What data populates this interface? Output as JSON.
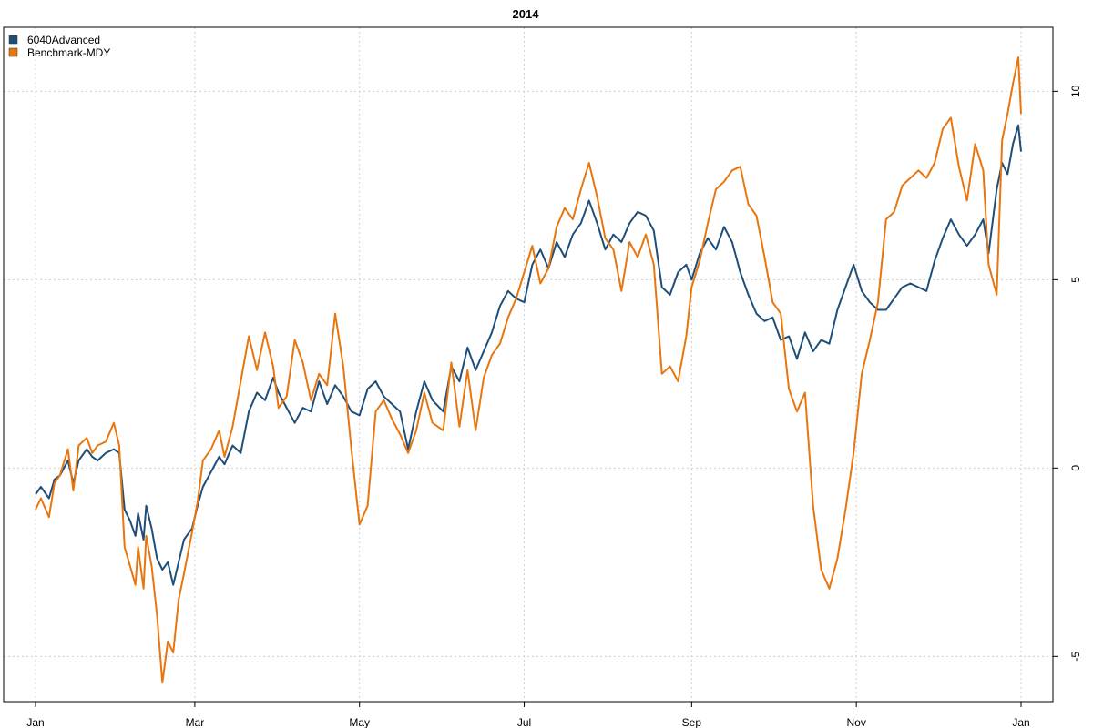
{
  "chart_data": {
    "type": "line",
    "title": "2014",
    "xlabel": "",
    "ylabel": "",
    "x_axis_type": "date",
    "xlim": [
      "2014-01-01",
      "2015-01-01"
    ],
    "ylim": [
      -6.2,
      11.7
    ],
    "y_ticks": [
      -5,
      0,
      5,
      10
    ],
    "y_axis_side": "right",
    "x_ticks": [
      {
        "label": "Jan",
        "date": "2014-01-01"
      },
      {
        "label": "Mar",
        "date": "2014-03-01"
      },
      {
        "label": "May",
        "date": "2014-05-01"
      },
      {
        "label": "Jul",
        "date": "2014-07-01"
      },
      {
        "label": "Sep",
        "date": "2014-09-01"
      },
      {
        "label": "Nov",
        "date": "2014-11-01"
      },
      {
        "label": "Jan",
        "date": "2015-01-01"
      }
    ],
    "grid": true,
    "legend_position": "top-left",
    "series": [
      {
        "name": "6040Advanced",
        "color": "#1f4e79",
        "points": [
          [
            "2014-01-01",
            -0.7
          ],
          [
            "2014-01-03",
            -0.5
          ],
          [
            "2014-01-06",
            -0.8
          ],
          [
            "2014-01-08",
            -0.3
          ],
          [
            "2014-01-10",
            -0.2
          ],
          [
            "2014-01-13",
            0.2
          ],
          [
            "2014-01-15",
            -0.4
          ],
          [
            "2014-01-17",
            0.2
          ],
          [
            "2014-01-20",
            0.5
          ],
          [
            "2014-01-22",
            0.3
          ],
          [
            "2014-01-24",
            0.2
          ],
          [
            "2014-01-27",
            0.4
          ],
          [
            "2014-01-30",
            0.5
          ],
          [
            "2014-02-01",
            0.4
          ],
          [
            "2014-02-03",
            -1.1
          ],
          [
            "2014-02-05",
            -1.4
          ],
          [
            "2014-02-07",
            -1.8
          ],
          [
            "2014-02-08",
            -1.2
          ],
          [
            "2014-02-10",
            -1.9
          ],
          [
            "2014-02-11",
            -1.0
          ],
          [
            "2014-02-13",
            -1.6
          ],
          [
            "2014-02-15",
            -2.4
          ],
          [
            "2014-02-17",
            -2.7
          ],
          [
            "2014-02-19",
            -2.5
          ],
          [
            "2014-02-21",
            -3.1
          ],
          [
            "2014-02-23",
            -2.5
          ],
          [
            "2014-02-25",
            -1.9
          ],
          [
            "2014-02-28",
            -1.6
          ],
          [
            "2014-03-02",
            -1.0
          ],
          [
            "2014-03-04",
            -0.5
          ],
          [
            "2014-03-07",
            -0.1
          ],
          [
            "2014-03-10",
            0.3
          ],
          [
            "2014-03-12",
            0.1
          ],
          [
            "2014-03-15",
            0.6
          ],
          [
            "2014-03-18",
            0.4
          ],
          [
            "2014-03-21",
            1.5
          ],
          [
            "2014-03-24",
            2.0
          ],
          [
            "2014-03-27",
            1.8
          ],
          [
            "2014-03-30",
            2.4
          ],
          [
            "2014-04-01",
            2.0
          ],
          [
            "2014-04-04",
            1.6
          ],
          [
            "2014-04-07",
            1.2
          ],
          [
            "2014-04-10",
            1.6
          ],
          [
            "2014-04-13",
            1.5
          ],
          [
            "2014-04-16",
            2.3
          ],
          [
            "2014-04-19",
            1.7
          ],
          [
            "2014-04-22",
            2.2
          ],
          [
            "2014-04-25",
            1.9
          ],
          [
            "2014-04-28",
            1.5
          ],
          [
            "2014-05-01",
            1.4
          ],
          [
            "2014-05-04",
            2.1
          ],
          [
            "2014-05-07",
            2.3
          ],
          [
            "2014-05-10",
            1.9
          ],
          [
            "2014-05-13",
            1.7
          ],
          [
            "2014-05-16",
            1.5
          ],
          [
            "2014-05-19",
            0.5
          ],
          [
            "2014-05-22",
            1.5
          ],
          [
            "2014-05-25",
            2.3
          ],
          [
            "2014-05-28",
            1.8
          ],
          [
            "2014-06-01",
            1.5
          ],
          [
            "2014-06-04",
            2.7
          ],
          [
            "2014-06-07",
            2.3
          ],
          [
            "2014-06-10",
            3.2
          ],
          [
            "2014-06-13",
            2.6
          ],
          [
            "2014-06-16",
            3.1
          ],
          [
            "2014-06-19",
            3.6
          ],
          [
            "2014-06-22",
            4.3
          ],
          [
            "2014-06-25",
            4.7
          ],
          [
            "2014-06-28",
            4.5
          ],
          [
            "2014-07-01",
            4.4
          ],
          [
            "2014-07-04",
            5.4
          ],
          [
            "2014-07-07",
            5.8
          ],
          [
            "2014-07-10",
            5.3
          ],
          [
            "2014-07-13",
            6.0
          ],
          [
            "2014-07-16",
            5.6
          ],
          [
            "2014-07-19",
            6.2
          ],
          [
            "2014-07-22",
            6.5
          ],
          [
            "2014-07-25",
            7.1
          ],
          [
            "2014-07-28",
            6.5
          ],
          [
            "2014-07-31",
            5.8
          ],
          [
            "2014-08-03",
            6.2
          ],
          [
            "2014-08-06",
            6.0
          ],
          [
            "2014-08-09",
            6.5
          ],
          [
            "2014-08-12",
            6.8
          ],
          [
            "2014-08-15",
            6.7
          ],
          [
            "2014-08-18",
            6.3
          ],
          [
            "2014-08-21",
            4.8
          ],
          [
            "2014-08-24",
            4.6
          ],
          [
            "2014-08-27",
            5.2
          ],
          [
            "2014-08-30",
            5.4
          ],
          [
            "2014-09-01",
            5.0
          ],
          [
            "2014-09-04",
            5.7
          ],
          [
            "2014-09-07",
            6.1
          ],
          [
            "2014-09-10",
            5.8
          ],
          [
            "2014-09-13",
            6.4
          ],
          [
            "2014-09-16",
            6.0
          ],
          [
            "2014-09-19",
            5.2
          ],
          [
            "2014-09-22",
            4.6
          ],
          [
            "2014-09-25",
            4.1
          ],
          [
            "2014-09-28",
            3.9
          ],
          [
            "2014-10-01",
            4.0
          ],
          [
            "2014-10-04",
            3.4
          ],
          [
            "2014-10-07",
            3.5
          ],
          [
            "2014-10-10",
            2.9
          ],
          [
            "2014-10-13",
            3.6
          ],
          [
            "2014-10-16",
            3.1
          ],
          [
            "2014-10-19",
            3.4
          ],
          [
            "2014-10-22",
            3.3
          ],
          [
            "2014-10-25",
            4.2
          ],
          [
            "2014-10-28",
            4.8
          ],
          [
            "2014-10-31",
            5.4
          ],
          [
            "2014-11-03",
            4.7
          ],
          [
            "2014-11-06",
            4.4
          ],
          [
            "2014-11-09",
            4.2
          ],
          [
            "2014-11-12",
            4.2
          ],
          [
            "2014-11-15",
            4.5
          ],
          [
            "2014-11-18",
            4.8
          ],
          [
            "2014-11-21",
            4.9
          ],
          [
            "2014-11-24",
            4.8
          ],
          [
            "2014-11-27",
            4.7
          ],
          [
            "2014-11-30",
            5.5
          ],
          [
            "2014-12-03",
            6.1
          ],
          [
            "2014-12-06",
            6.6
          ],
          [
            "2014-12-09",
            6.2
          ],
          [
            "2014-12-12",
            5.9
          ],
          [
            "2014-12-15",
            6.2
          ],
          [
            "2014-12-18",
            6.6
          ],
          [
            "2014-12-20",
            5.7
          ],
          [
            "2014-12-23",
            7.4
          ],
          [
            "2014-12-25",
            8.1
          ],
          [
            "2014-12-27",
            7.8
          ],
          [
            "2014-12-29",
            8.6
          ],
          [
            "2014-12-31",
            9.1
          ],
          [
            "2015-01-01",
            8.4
          ]
        ]
      },
      {
        "name": "Benchmark-MDY",
        "color": "#e8760e",
        "points": [
          [
            "2014-01-01",
            -1.1
          ],
          [
            "2014-01-03",
            -0.8
          ],
          [
            "2014-01-06",
            -1.3
          ],
          [
            "2014-01-08",
            -0.4
          ],
          [
            "2014-01-10",
            -0.2
          ],
          [
            "2014-01-13",
            0.5
          ],
          [
            "2014-01-15",
            -0.6
          ],
          [
            "2014-01-17",
            0.6
          ],
          [
            "2014-01-20",
            0.8
          ],
          [
            "2014-01-22",
            0.4
          ],
          [
            "2014-01-24",
            0.6
          ],
          [
            "2014-01-27",
            0.7
          ],
          [
            "2014-01-30",
            1.2
          ],
          [
            "2014-02-01",
            0.6
          ],
          [
            "2014-02-03",
            -2.1
          ],
          [
            "2014-02-05",
            -2.6
          ],
          [
            "2014-02-07",
            -3.1
          ],
          [
            "2014-02-08",
            -2.1
          ],
          [
            "2014-02-10",
            -3.2
          ],
          [
            "2014-02-11",
            -1.8
          ],
          [
            "2014-02-13",
            -2.6
          ],
          [
            "2014-02-15",
            -3.9
          ],
          [
            "2014-02-17",
            -5.7
          ],
          [
            "2014-02-19",
            -4.6
          ],
          [
            "2014-02-21",
            -4.9
          ],
          [
            "2014-02-23",
            -3.5
          ],
          [
            "2014-02-25",
            -2.8
          ],
          [
            "2014-02-28",
            -1.7
          ],
          [
            "2014-03-02",
            -0.9
          ],
          [
            "2014-03-04",
            0.2
          ],
          [
            "2014-03-07",
            0.5
          ],
          [
            "2014-03-10",
            1.0
          ],
          [
            "2014-03-12",
            0.3
          ],
          [
            "2014-03-15",
            1.1
          ],
          [
            "2014-03-18",
            2.3
          ],
          [
            "2014-03-21",
            3.5
          ],
          [
            "2014-03-24",
            2.6
          ],
          [
            "2014-03-27",
            3.6
          ],
          [
            "2014-03-30",
            2.7
          ],
          [
            "2014-04-01",
            1.6
          ],
          [
            "2014-04-04",
            1.9
          ],
          [
            "2014-04-07",
            3.4
          ],
          [
            "2014-04-10",
            2.8
          ],
          [
            "2014-04-13",
            1.8
          ],
          [
            "2014-04-16",
            2.5
          ],
          [
            "2014-04-19",
            2.2
          ],
          [
            "2014-04-22",
            4.1
          ],
          [
            "2014-04-25",
            2.7
          ],
          [
            "2014-04-28",
            0.5
          ],
          [
            "2014-05-01",
            -1.5
          ],
          [
            "2014-05-04",
            -1.0
          ],
          [
            "2014-05-07",
            1.5
          ],
          [
            "2014-05-10",
            1.8
          ],
          [
            "2014-05-13",
            1.3
          ],
          [
            "2014-05-16",
            0.9
          ],
          [
            "2014-05-19",
            0.4
          ],
          [
            "2014-05-22",
            1.0
          ],
          [
            "2014-05-25",
            2.0
          ],
          [
            "2014-05-28",
            1.2
          ],
          [
            "2014-06-01",
            1.0
          ],
          [
            "2014-06-04",
            2.8
          ],
          [
            "2014-06-07",
            1.1
          ],
          [
            "2014-06-10",
            2.6
          ],
          [
            "2014-06-13",
            1.0
          ],
          [
            "2014-06-16",
            2.4
          ],
          [
            "2014-06-19",
            3.0
          ],
          [
            "2014-06-22",
            3.3
          ],
          [
            "2014-06-25",
            4.0
          ],
          [
            "2014-06-28",
            4.5
          ],
          [
            "2014-07-01",
            5.2
          ],
          [
            "2014-07-04",
            5.9
          ],
          [
            "2014-07-07",
            4.9
          ],
          [
            "2014-07-10",
            5.3
          ],
          [
            "2014-07-13",
            6.4
          ],
          [
            "2014-07-16",
            6.9
          ],
          [
            "2014-07-19",
            6.6
          ],
          [
            "2014-07-22",
            7.4
          ],
          [
            "2014-07-25",
            8.1
          ],
          [
            "2014-07-28",
            7.2
          ],
          [
            "2014-07-31",
            6.1
          ],
          [
            "2014-08-03",
            5.8
          ],
          [
            "2014-08-06",
            4.7
          ],
          [
            "2014-08-09",
            6.0
          ],
          [
            "2014-08-12",
            5.6
          ],
          [
            "2014-08-15",
            6.2
          ],
          [
            "2014-08-18",
            5.4
          ],
          [
            "2014-08-21",
            2.5
          ],
          [
            "2014-08-24",
            2.7
          ],
          [
            "2014-08-27",
            2.3
          ],
          [
            "2014-08-30",
            3.5
          ],
          [
            "2014-09-01",
            4.8
          ],
          [
            "2014-09-04",
            5.5
          ],
          [
            "2014-09-07",
            6.5
          ],
          [
            "2014-09-10",
            7.4
          ],
          [
            "2014-09-13",
            7.6
          ],
          [
            "2014-09-16",
            7.9
          ],
          [
            "2014-09-19",
            8.0
          ],
          [
            "2014-09-22",
            7.0
          ],
          [
            "2014-09-25",
            6.7
          ],
          [
            "2014-09-28",
            5.6
          ],
          [
            "2014-10-01",
            4.4
          ],
          [
            "2014-10-04",
            4.1
          ],
          [
            "2014-10-07",
            2.1
          ],
          [
            "2014-10-10",
            1.5
          ],
          [
            "2014-10-13",
            2.0
          ],
          [
            "2014-10-16",
            -1.0
          ],
          [
            "2014-10-19",
            -2.7
          ],
          [
            "2014-10-22",
            -3.2
          ],
          [
            "2014-10-25",
            -2.4
          ],
          [
            "2014-10-28",
            -1.1
          ],
          [
            "2014-10-31",
            0.4
          ],
          [
            "2014-11-03",
            2.5
          ],
          [
            "2014-11-06",
            3.4
          ],
          [
            "2014-11-09",
            4.4
          ],
          [
            "2014-11-12",
            6.6
          ],
          [
            "2014-11-15",
            6.8
          ],
          [
            "2014-11-18",
            7.5
          ],
          [
            "2014-11-21",
            7.7
          ],
          [
            "2014-11-24",
            7.9
          ],
          [
            "2014-11-27",
            7.7
          ],
          [
            "2014-11-30",
            8.1
          ],
          [
            "2014-12-03",
            9.0
          ],
          [
            "2014-12-06",
            9.3
          ],
          [
            "2014-12-09",
            8.0
          ],
          [
            "2014-12-12",
            7.1
          ],
          [
            "2014-12-15",
            8.6
          ],
          [
            "2014-12-18",
            7.9
          ],
          [
            "2014-12-20",
            5.4
          ],
          [
            "2014-12-23",
            4.6
          ],
          [
            "2014-12-25",
            8.7
          ],
          [
            "2014-12-27",
            9.4
          ],
          [
            "2014-12-29",
            10.2
          ],
          [
            "2014-12-31",
            10.9
          ],
          [
            "2015-01-01",
            9.4
          ]
        ]
      }
    ]
  }
}
